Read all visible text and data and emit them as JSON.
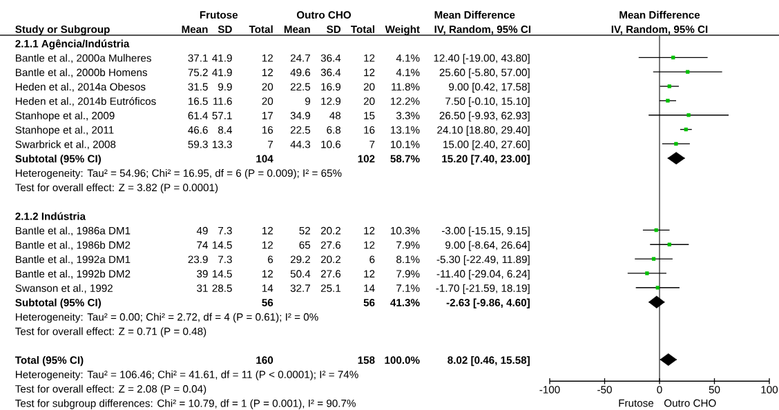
{
  "chart_data": [
    {
      "type": "other",
      "ylabel": "Study or Subgroup",
      "categories": [
        "2.1.1 Agência/Indústria",
        "Bantle et al., 2000a Mulheres",
        "Bantle et al., 2000b Homens",
        "Heden et al., 2014a Obesos",
        "Heden et al., 2014b Eutróficos",
        "Stanhope et al., 2009",
        "Stanhope et al., 2011",
        "Swarbrick et al., 2008",
        "Subtotal (95% CI)",
        "Heterogeneity: Tau² = 54.96; Chi² = 16.95, df = 6 (P = 0.009); I² = 65%",
        "Test for overall effect: Z = 3.82 (P = 0.0001)",
        null,
        "2.1.2 Indústria",
        "Bantle et al., 1986a DM1",
        "Bantle et al., 1986b DM2",
        "Bantle et al., 1992a DM1",
        "Bantle et al., 1992b DM2",
        "Swanson et al., 1992",
        "Subtotal (95% CI)",
        "Heterogeneity: Tau² = 0.00; Chi² = 2.72, df = 4 (P = 0.61); I² = 0%",
        "Test for overall effect: Z = 0.71 (P = 0.48)",
        null,
        "Total (95% CI)",
        "Heterogeneity: Tau² = 106.46; Chi² = 41.61, df = 11 (P < 0.0001); I² = 74%",
        "Test for overall effect: Z = 2.08 (P = 0.04)",
        "Test for subgroup differences: Chi² = 10.79, df = 1 (P = 0.001), I² = 90.7%"
      ],
      "data_labels": true,
      "series": [
        {
          "type": "other",
          "name": "Mean",
          "color": "#000000",
          "values": [
            null,
            37.1,
            75.2,
            31.5,
            16.5,
            61.4,
            46.6,
            59.3,
            null,
            null,
            null,
            null,
            null,
            49,
            74,
            23.9,
            39,
            31,
            null,
            null,
            null,
            null,
            null,
            null,
            null,
            null
          ]
        },
        {
          "type": "other",
          "name": "SD",
          "color": "#000000",
          "values": [
            null,
            41.9,
            41.9,
            9.9,
            11.6,
            57.1,
            8.4,
            13.3,
            null,
            null,
            null,
            null,
            null,
            7.3,
            14.5,
            7.3,
            14.5,
            28.5,
            null,
            null,
            null,
            null,
            null,
            null,
            null,
            null
          ]
        },
        {
          "type": "other",
          "name": "Total",
          "color": "#000000",
          "values": [
            null,
            12,
            12,
            20,
            20,
            17,
            16,
            7,
            104,
            null,
            null,
            null,
            null,
            12,
            12,
            6,
            12,
            14,
            56,
            null,
            null,
            null,
            160,
            null,
            null,
            null
          ]
        },
        {
          "type": "other",
          "name": "Mean",
          "color": "#000000",
          "values": [
            null,
            24.7,
            49.6,
            22.5,
            9,
            34.9,
            22.5,
            44.3,
            null,
            null,
            null,
            null,
            null,
            52,
            65,
            29.2,
            50.4,
            32.7,
            null,
            null,
            null,
            null,
            null,
            null,
            null,
            null
          ]
        },
        {
          "type": "other",
          "name": "SD",
          "color": "#000000",
          "values": [
            null,
            36.4,
            36.4,
            16.9,
            12.9,
            48,
            6.8,
            10.6,
            null,
            null,
            null,
            null,
            null,
            20.2,
            27.6,
            20.2,
            27.6,
            25.1,
            null,
            null,
            null,
            null,
            null,
            null,
            null,
            null
          ]
        },
        {
          "type": "other",
          "name": "Total",
          "color": "#000000",
          "values": [
            null,
            12,
            12,
            20,
            20,
            15,
            16,
            7,
            102,
            null,
            null,
            null,
            null,
            12,
            12,
            6,
            12,
            14,
            56,
            null,
            null,
            null,
            158,
            null,
            null,
            null
          ]
        },
        {
          "type": "other",
          "name": "Weight",
          "color": "#000000",
          "values": [
            null,
            4.1,
            4.1,
            11.8,
            12.2,
            3.3,
            13.1,
            10.1,
            58.7,
            null,
            null,
            null,
            null,
            10.3,
            7.9,
            8.1,
            7.9,
            7.1,
            41.3,
            null,
            null,
            null,
            100.0,
            null,
            null,
            null
          ],
          "value_labels": [
            null,
            "4.1%",
            "4.1%",
            "11.8%",
            "12.2%",
            "3.3%",
            "13.1%",
            "10.1%",
            "58.7%",
            null,
            null,
            null,
            null,
            "10.3%",
            "7.9%",
            "8.1%",
            "7.9%",
            "7.1%",
            "41.3%",
            null,
            null,
            null,
            "100.0%",
            null,
            null,
            null
          ]
        },
        {
          "type": "other",
          "name": "IV, Random, 95% CI",
          "color": "#000000",
          "values": [
            null,
            12.4,
            25.6,
            9,
            7.5,
            26.5,
            24.1,
            15,
            15.2,
            null,
            null,
            null,
            null,
            -3,
            9,
            -5.3,
            -11.4,
            -1.7,
            -2.63,
            null,
            null,
            null,
            8.02,
            null,
            null,
            null
          ],
          "value_labels": [
            null,
            "12.40 [-19.00, 43.80]",
            "25.60 [-5.80, 57.00]",
            "9.00 [0.42, 17.58]",
            "7.50 [-0.10, 15.10]",
            "26.50 [-9.93, 62.93]",
            "24.10 [18.80, 29.40]",
            "15.00 [2.40, 27.60]",
            "15.20 [7.40, 23.00]",
            null,
            null,
            null,
            null,
            "-3.00 [-15.15, 9.15]",
            "9.00 [-8.64, 26.64]",
            "-5.30 [-22.49, 11.89]",
            "-11.40 [-29.04, 6.24]",
            "-1.70 [-21.59, 18.19]",
            "-2.63 [-9.86, 4.60]",
            null,
            null,
            null,
            "8.02 [0.46, 15.58]",
            null,
            null,
            null
          ]
        }
      ],
      "annotations": [
        "Frutose",
        "Outro CHO",
        "Mean Difference"
      ]
    },
    {
      "type": "scatter",
      "orientation": "horizontal",
      "title": "Mean Difference",
      "subtitle": "IV, Random, 95% CI",
      "categories": [
        null,
        null,
        null,
        null,
        null,
        null,
        null,
        null,
        null,
        null,
        null,
        null,
        null,
        null,
        null,
        null,
        null,
        null,
        null,
        null,
        null,
        null,
        null,
        null
      ],
      "tick_labels": "x",
      "xlim": [
        -100,
        100
      ],
      "xticks": [
        -100,
        -50,
        0,
        50,
        100
      ],
      "ref_lines": [
        {
          "axis": "x",
          "value": 0,
          "color": "#000000"
        }
      ],
      "series": [
        {
          "type": "scatter",
          "marker": "square",
          "color": "#00c000",
          "values": [
            null,
            12.4,
            25.6,
            9,
            7.5,
            26.5,
            24.1,
            15,
            null,
            null,
            null,
            null,
            null,
            -3,
            9,
            -5.3,
            -11.4,
            -1.7,
            null,
            null,
            null,
            null,
            null,
            null
          ],
          "errors": [
            null,
            [
              -19,
              43.8
            ],
            [
              -5.8,
              57
            ],
            [
              0.42,
              17.58
            ],
            [
              -0.1,
              15.1
            ],
            [
              -9.93,
              62.93
            ],
            [
              18.8,
              29.4
            ],
            [
              2.4,
              27.6
            ],
            null,
            null,
            null,
            null,
            null,
            [
              -15.15,
              9.15
            ],
            [
              -8.64,
              26.64
            ],
            [
              -22.49,
              11.89
            ],
            [
              -29.04,
              6.24
            ],
            [
              -21.59,
              18.19
            ],
            null,
            null,
            null,
            null,
            null,
            null
          ]
        },
        {
          "type": "scatter",
          "marker": "diamond",
          "color": "#000000",
          "values": [
            null,
            null,
            null,
            null,
            null,
            null,
            null,
            null,
            15.2,
            null,
            null,
            null,
            null,
            null,
            null,
            null,
            null,
            null,
            -2.63,
            null,
            null,
            null,
            8.02,
            null
          ],
          "errors": [
            null,
            null,
            null,
            null,
            null,
            null,
            null,
            null,
            [
              7.4,
              23
            ],
            null,
            null,
            null,
            null,
            null,
            null,
            null,
            null,
            null,
            [
              -9.86,
              4.6
            ],
            null,
            null,
            null,
            [
              0.46,
              15.58
            ],
            null
          ]
        }
      ],
      "annotations": [
        "Frutose",
        "Outro CHO"
      ]
    }
  ]
}
